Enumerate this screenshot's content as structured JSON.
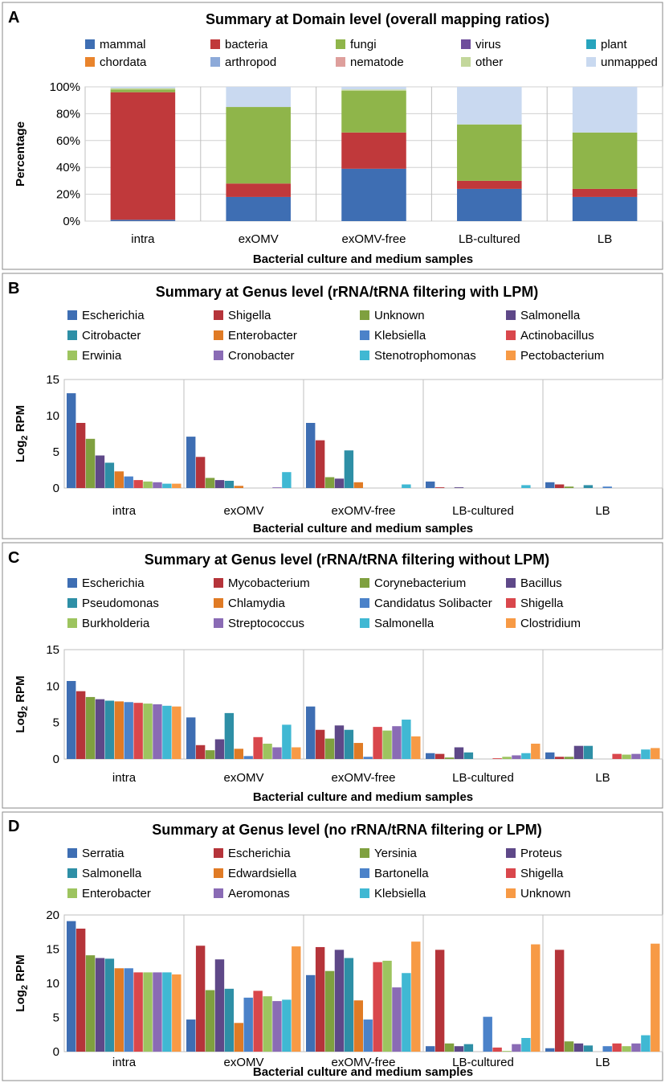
{
  "colors": {
    "mammal": "#3e6eb3",
    "bacteria": "#c0393b",
    "fungi": "#8fb54a",
    "virus": "#6f4e9c",
    "plant": "#27a4bd",
    "chordata": "#e9842c",
    "arthropod": "#8daad9",
    "nematode": "#de9f9c",
    "other": "#c3d79b",
    "unmapped": "#c9d9f0",
    "genus_palette": [
      "#3e6eb3",
      "#b5343a",
      "#7fa03f",
      "#5e4888",
      "#2e8fa6",
      "#e07b25",
      "#4b82c9",
      "#d9474c",
      "#9dc45f",
      "#8a6bb5",
      "#40b8d3",
      "#f79a45"
    ]
  },
  "chart_data": [
    {
      "panel": "A",
      "type": "bar",
      "stacked": true,
      "title": "Summary at Domain level (overall mapping ratios)",
      "xlabel": "Bacterial culture and medium samples",
      "ylabel": "Percentage",
      "ylim": [
        0,
        100
      ],
      "yticks": [
        "0%",
        "20%",
        "40%",
        "60%",
        "80%",
        "100%"
      ],
      "categories": [
        "intra",
        "exOMV",
        "exOMV-free",
        "LB-cultured",
        "LB"
      ],
      "series": [
        {
          "name": "mammal",
          "values": [
            1,
            18,
            39,
            24,
            18
          ]
        },
        {
          "name": "bacteria",
          "values": [
            95,
            10,
            27,
            6,
            6
          ]
        },
        {
          "name": "fungi",
          "values": [
            2,
            57,
            31,
            42,
            42
          ]
        },
        {
          "name": "virus",
          "values": [
            0,
            0,
            0,
            0,
            0
          ]
        },
        {
          "name": "plant",
          "values": [
            0,
            0,
            0,
            0,
            0
          ]
        },
        {
          "name": "chordata",
          "values": [
            0,
            0,
            0,
            0,
            0
          ]
        },
        {
          "name": "arthropod",
          "values": [
            0,
            0,
            0,
            0,
            0
          ]
        },
        {
          "name": "nematode",
          "values": [
            0,
            0,
            0,
            0,
            0
          ]
        },
        {
          "name": "other",
          "values": [
            1,
            0,
            1,
            0,
            0
          ]
        },
        {
          "name": "unmapped",
          "values": [
            1,
            15,
            2,
            28,
            34
          ]
        }
      ],
      "legend_columns": 5
    },
    {
      "panel": "B",
      "type": "bar",
      "title": "Summary at Genus level (rRNA/tRNA filtering with LPM)",
      "xlabel": "Bacterial culture and medium samples",
      "ylabel": "Log",
      "ylabel_sub": "2",
      "ylabel_suffix": " RPM",
      "ylim": [
        0,
        15
      ],
      "yticks": [
        "0",
        "5",
        "10",
        "15"
      ],
      "categories": [
        "intra",
        "exOMV",
        "exOMV-free",
        "LB-cultured",
        "LB"
      ],
      "series": [
        {
          "name": "Escherichia",
          "values": [
            13.1,
            7.1,
            9.0,
            0.9,
            0.8
          ]
        },
        {
          "name": "Shigella",
          "values": [
            9.0,
            4.3,
            6.6,
            0.1,
            0.5
          ]
        },
        {
          "name": "Unknown",
          "values": [
            6.8,
            1.4,
            1.5,
            0.0,
            0.2
          ]
        },
        {
          "name": "Salmonella",
          "values": [
            4.5,
            1.1,
            1.3,
            0.1,
            0.0
          ]
        },
        {
          "name": "Citrobacter",
          "values": [
            3.5,
            1.0,
            5.2,
            0.0,
            0.4
          ]
        },
        {
          "name": "Enterobacter",
          "values": [
            2.3,
            0.3,
            0.8,
            0.0,
            0.0
          ]
        },
        {
          "name": "Klebsiella",
          "values": [
            1.6,
            0.0,
            0.0,
            0.0,
            0.2
          ]
        },
        {
          "name": "Actinobacillus",
          "values": [
            1.1,
            0.0,
            0.0,
            0.0,
            0.0
          ]
        },
        {
          "name": "Erwinia",
          "values": [
            0.9,
            0.0,
            0.0,
            0.0,
            0.0
          ]
        },
        {
          "name": "Cronobacter",
          "values": [
            0.8,
            0.1,
            0.0,
            0.0,
            0.0
          ]
        },
        {
          "name": "Stenotrophomonas",
          "values": [
            0.6,
            2.2,
            0.5,
            0.4,
            0.0
          ]
        },
        {
          "name": "Pectobacterium",
          "values": [
            0.6,
            0.0,
            0.0,
            0.0,
            0.0
          ]
        }
      ],
      "legend_columns": 4
    },
    {
      "panel": "C",
      "type": "bar",
      "title": "Summary at Genus level (rRNA/tRNA filtering without LPM)",
      "xlabel": "Bacterial culture and medium samples",
      "ylabel": "Log",
      "ylabel_sub": "2",
      "ylabel_suffix": " RPM",
      "ylim": [
        0,
        15
      ],
      "yticks": [
        "0",
        "5",
        "10",
        "15"
      ],
      "categories": [
        "intra",
        "exOMV",
        "exOMV-free",
        "LB-cultured",
        "LB"
      ],
      "series": [
        {
          "name": "Escherichia",
          "values": [
            10.7,
            5.7,
            7.2,
            0.8,
            0.9
          ]
        },
        {
          "name": "Mycobacterium",
          "values": [
            9.3,
            1.9,
            4.0,
            0.7,
            0.3
          ]
        },
        {
          "name": "Corynebacterium",
          "values": [
            8.5,
            1.2,
            2.8,
            0.2,
            0.3
          ]
        },
        {
          "name": "Bacillus",
          "values": [
            8.2,
            2.7,
            4.6,
            1.6,
            1.8
          ]
        },
        {
          "name": "Pseudomonas",
          "values": [
            8.0,
            6.3,
            4.0,
            0.9,
            1.8
          ]
        },
        {
          "name": "Chlamydia",
          "values": [
            7.9,
            1.4,
            2.2,
            0.0,
            0.0
          ]
        },
        {
          "name": "Candidatus Solibacter",
          "values": [
            7.8,
            0.4,
            0.3,
            0.0,
            0.0
          ]
        },
        {
          "name": "Shigella",
          "values": [
            7.7,
            3.0,
            4.4,
            0.1,
            0.7
          ]
        },
        {
          "name": "Burkholderia",
          "values": [
            7.6,
            2.1,
            3.9,
            0.3,
            0.6
          ]
        },
        {
          "name": "Streptococcus",
          "values": [
            7.5,
            1.6,
            4.5,
            0.5,
            0.7
          ]
        },
        {
          "name": "Salmonella",
          "values": [
            7.3,
            4.7,
            5.4,
            0.8,
            1.3
          ]
        },
        {
          "name": "Clostridium",
          "values": [
            7.2,
            1.6,
            3.1,
            2.1,
            1.5
          ]
        }
      ],
      "legend_columns": 4
    },
    {
      "panel": "D",
      "type": "bar",
      "title": "Summary at Genus level (no rRNA/tRNA filtering or LPM)",
      "xlabel": "Bacterial culture and medium samples",
      "ylabel": "Log",
      "ylabel_sub": "2",
      "ylabel_suffix": " RPM",
      "ylim": [
        0,
        20
      ],
      "yticks": [
        "0",
        "5",
        "10",
        "15",
        "20"
      ],
      "categories": [
        "intra",
        "exOMV",
        "exOMV-free",
        "LB-cultured",
        "LB"
      ],
      "series": [
        {
          "name": "Serratia",
          "values": [
            19.1,
            4.7,
            11.2,
            0.8,
            0.5
          ]
        },
        {
          "name": "Escherichia",
          "values": [
            18.0,
            15.5,
            15.3,
            14.9,
            14.9
          ]
        },
        {
          "name": "Yersinia",
          "values": [
            14.1,
            9.0,
            11.8,
            1.2,
            1.5
          ]
        },
        {
          "name": "Proteus",
          "values": [
            13.7,
            13.5,
            14.9,
            0.8,
            1.2
          ]
        },
        {
          "name": "Salmonella",
          "values": [
            13.6,
            9.2,
            13.7,
            1.1,
            0.9
          ]
        },
        {
          "name": "Edwardsiella",
          "values": [
            12.2,
            4.2,
            7.5,
            0.0,
            0.0
          ]
        },
        {
          "name": "Bartonella",
          "values": [
            12.2,
            7.9,
            4.7,
            5.1,
            0.8
          ]
        },
        {
          "name": "Shigella",
          "values": [
            11.6,
            8.9,
            13.1,
            0.6,
            1.2
          ]
        },
        {
          "name": "Enterobacter",
          "values": [
            11.6,
            8.1,
            13.3,
            0.1,
            0.8
          ]
        },
        {
          "name": "Aeromonas",
          "values": [
            11.6,
            7.4,
            9.4,
            1.1,
            1.2
          ]
        },
        {
          "name": "Klebsiella",
          "values": [
            11.6,
            7.6,
            11.5,
            2.0,
            2.4
          ]
        },
        {
          "name": "Unknown",
          "values": [
            11.3,
            15.4,
            16.1,
            15.7,
            15.8
          ]
        }
      ],
      "legend_columns": 4
    }
  ]
}
